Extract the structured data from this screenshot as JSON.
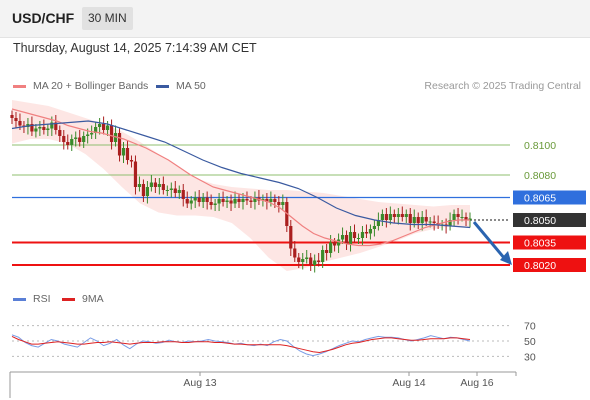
{
  "header": {
    "symbol": "USD/CHF",
    "interval": "30 MIN",
    "timestamp": "Thursday, August 14, 2025 7:14:39 AM CET"
  },
  "legend": {
    "ma20": "MA 20 + Bollinger Bands",
    "ma50": "MA 50",
    "credit": "Research © 2025 Trading Central",
    "rsi": "RSI",
    "rsi_ma": "9MA"
  },
  "colors": {
    "ma20": "#f08080",
    "ma50": "#3a5aa0",
    "bollinger_fill": "#fde3e1",
    "candle_up": "#3a8a2a",
    "candle_down": "#aa1f1f",
    "resistance_green": "#8fbf6f",
    "pivot_blue": "#2f6fdd",
    "support_red": "#ee1111",
    "current_price_box": "#333333",
    "arrow": "#2a64b0",
    "rsi_line": "#7a9de6",
    "rsi_ma_line": "#dd2222"
  },
  "chart_data": [
    {
      "type": "candlestick",
      "title": "USD/CHF 30 MIN",
      "ylim": [
        0.801,
        0.813
      ],
      "x_ticks": [
        "Aug 13",
        "Aug 14",
        "Aug 16"
      ],
      "levels": [
        {
          "value": 0.81,
          "label": "0.8100",
          "kind": "resistance",
          "color": "#8fbf6f"
        },
        {
          "value": 0.808,
          "label": "0.8080",
          "kind": "resistance",
          "color": "#8fbf6f"
        },
        {
          "value": 0.8065,
          "label": "0.8065",
          "kind": "pivot",
          "color": "#2f6fdd"
        },
        {
          "value": 0.805,
          "label": "0.8050",
          "kind": "last-price",
          "color": "#333333"
        },
        {
          "value": 0.8035,
          "label": "0.8035",
          "kind": "support",
          "color": "#ee1111"
        },
        {
          "value": 0.802,
          "label": "0.8020",
          "kind": "support",
          "color": "#ee1111"
        }
      ],
      "close": [
        0.8118,
        0.8116,
        0.8113,
        0.8112,
        0.8114,
        0.8109,
        0.8111,
        0.8112,
        0.811,
        0.8111,
        0.8115,
        0.811,
        0.8106,
        0.8102,
        0.81,
        0.8104,
        0.8105,
        0.8102,
        0.8106,
        0.8107,
        0.8108,
        0.8112,
        0.8114,
        0.811,
        0.8113,
        0.8102,
        0.8108,
        0.8093,
        0.8098,
        0.809,
        0.8089,
        0.8072,
        0.8074,
        0.8066,
        0.8072,
        0.8075,
        0.8072,
        0.8074,
        0.807,
        0.807,
        0.8071,
        0.8068,
        0.807,
        0.8064,
        0.8061,
        0.8063,
        0.8065,
        0.8062,
        0.8065,
        0.8062,
        0.806,
        0.8061,
        0.8064,
        0.8062,
        0.8063,
        0.8061,
        0.8064,
        0.8062,
        0.8064,
        0.8063,
        0.8062,
        0.8065,
        0.8063,
        0.8064,
        0.8062,
        0.8064,
        0.8062,
        0.806,
        0.8062,
        0.8046,
        0.8031,
        0.8025,
        0.8022,
        0.8024,
        0.8025,
        0.802,
        0.8023,
        0.8022,
        0.803,
        0.8028,
        0.8035,
        0.8033,
        0.8037,
        0.804,
        0.8034,
        0.8042,
        0.8038,
        0.8038,
        0.8042,
        0.8041,
        0.8044,
        0.8046,
        0.805,
        0.8054,
        0.805,
        0.8054,
        0.8052,
        0.8054,
        0.8052,
        0.8054,
        0.8048,
        0.8052,
        0.8048,
        0.8052,
        0.8049,
        0.8049,
        0.8048,
        0.8047,
        0.8047,
        0.8046,
        0.805,
        0.8054,
        0.8052,
        0.8052,
        0.805,
        0.8051
      ],
      "ma20": [
        0.8124,
        0.8122,
        0.812,
        0.8118,
        0.8116,
        0.8113,
        0.8111,
        0.8109,
        0.8108,
        0.8106,
        0.8104,
        0.8101,
        0.8098,
        0.8094,
        0.809,
        0.8085,
        0.808,
        0.8076,
        0.8072,
        0.807,
        0.8068,
        0.8066,
        0.8064,
        0.8062,
        0.8058,
        0.8052,
        0.8046,
        0.8041,
        0.8038,
        0.8036,
        0.8034,
        0.8033,
        0.8033,
        0.8034,
        0.8036,
        0.8039,
        0.8042,
        0.8045,
        0.8047,
        0.8049,
        0.805,
        0.805
      ],
      "ma50": [
        0.8111,
        0.8113,
        0.8114,
        0.8115,
        0.8116,
        0.8114,
        0.811,
        0.8106,
        0.8102,
        0.8096,
        0.809,
        0.8085,
        0.8081,
        0.8078,
        0.8075,
        0.8071,
        0.8065,
        0.8058,
        0.8053,
        0.805,
        0.8048,
        0.8047,
        0.8047,
        0.8046,
        0.8045
      ],
      "bollinger_upper": [
        0.813,
        0.8128,
        0.8126,
        0.8122,
        0.8118,
        0.8114,
        0.8109,
        0.8102,
        0.8094,
        0.8086,
        0.8078,
        0.8074,
        0.8072,
        0.8071,
        0.807,
        0.807,
        0.8069,
        0.8068,
        0.8066,
        0.8064,
        0.8062,
        0.8061,
        0.806,
        0.8059,
        0.806,
        0.806
      ],
      "bollinger_lower": [
        0.8101,
        0.8104,
        0.8104,
        0.8101,
        0.8094,
        0.8084,
        0.8072,
        0.8061,
        0.8055,
        0.8053,
        0.8053,
        0.8052,
        0.8048,
        0.8038,
        0.8025,
        0.8016,
        0.8018,
        0.8022,
        0.8025,
        0.8028,
        0.8032,
        0.8036,
        0.8041,
        0.8044,
        0.8046,
        0.8045
      ]
    },
    {
      "type": "line",
      "title": "RSI",
      "ylim": [
        20,
        80
      ],
      "y_ticks": [
        70,
        50,
        30
      ],
      "series": [
        {
          "name": "RSI",
          "values": [
            58,
            55,
            48,
            44,
            42,
            47,
            52,
            50,
            46,
            44,
            42,
            48,
            54,
            50,
            44,
            47,
            52,
            45,
            40,
            46,
            50,
            49,
            47,
            48,
            51,
            49,
            48,
            50,
            49,
            50,
            52,
            50,
            49,
            48,
            46,
            47,
            45,
            44,
            46,
            44,
            49,
            52,
            50,
            43,
            37,
            33,
            31,
            33,
            36,
            40,
            44,
            47,
            50,
            49,
            52,
            54,
            56,
            55,
            55,
            54,
            52,
            50,
            52,
            54,
            57,
            55,
            53,
            55,
            54,
            52,
            50
          ]
        },
        {
          "name": "9MA",
          "values": [
            56,
            52,
            49,
            46,
            46,
            47,
            48,
            49,
            48,
            47,
            46,
            46,
            47,
            48,
            48,
            49,
            48,
            47,
            46,
            47,
            48,
            48,
            48,
            49,
            49,
            49,
            48,
            48,
            49,
            49,
            49,
            48,
            48,
            47,
            46,
            46,
            45,
            45,
            45,
            45,
            45,
            45,
            44,
            42,
            40,
            38,
            36,
            35,
            37,
            39,
            42,
            45,
            47,
            48,
            50,
            52,
            53,
            54,
            54,
            53,
            52,
            51,
            51,
            52,
            53,
            53,
            53,
            54,
            54,
            53,
            52
          ]
        }
      ]
    }
  ]
}
